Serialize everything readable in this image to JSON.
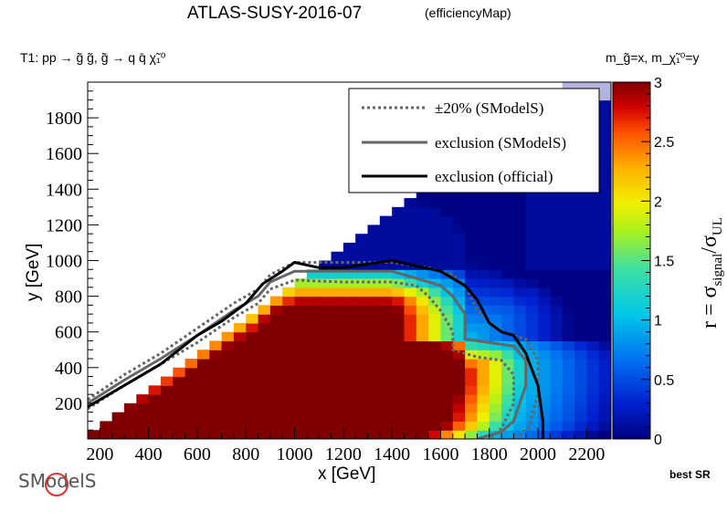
{
  "chart_data": {
    "type": "heatmap",
    "title": "ATLAS-SUSY-2016-07",
    "subtitle": "(efficiencyMap)",
    "process": "T1: pp → g̃ g̃, g̃ → q q̄ χ̃₁⁰",
    "mass_label": "m_g̃=x, m_χ̃₁⁰=y",
    "xlabel": "x [GeV]",
    "ylabel": "y [GeV]",
    "zlabel": "r = σ_signal/σ_UL",
    "xlim": [
      150,
      2300
    ],
    "ylim": [
      0,
      2000
    ],
    "zlim": [
      0,
      3
    ],
    "x_ticks": [
      200,
      400,
      600,
      800,
      1000,
      1200,
      1400,
      1600,
      1800,
      2000,
      2200
    ],
    "y_ticks": [
      200,
      400,
      600,
      800,
      1000,
      1200,
      1400,
      1600,
      1800
    ],
    "z_ticks": [
      0,
      0.5,
      1,
      1.5,
      2,
      2.5,
      3
    ],
    "legend_position": "top-right",
    "legend": [
      {
        "label": "±20% (SModelS)",
        "style": "dotted",
        "color": "#666666"
      },
      {
        "label": "exclusion (SModelS)",
        "style": "solid",
        "color": "#666666"
      },
      {
        "label": "exclusion (official)",
        "style": "solid",
        "color": "#000000"
      }
    ],
    "lightpurple_region_note": "",
    "exclusion_official": [
      [
        150,
        180
      ],
      [
        300,
        300
      ],
      [
        450,
        420
      ],
      [
        600,
        580
      ],
      [
        700,
        660
      ],
      [
        800,
        760
      ],
      [
        870,
        870
      ],
      [
        950,
        940
      ],
      [
        1000,
        990
      ],
      [
        1100,
        960
      ],
      [
        1200,
        960
      ],
      [
        1300,
        980
      ],
      [
        1400,
        1000
      ],
      [
        1500,
        970
      ],
      [
        1600,
        940
      ],
      [
        1700,
        860
      ],
      [
        1750,
        780
      ],
      [
        1800,
        650
      ],
      [
        1850,
        600
      ],
      [
        1900,
        580
      ],
      [
        1950,
        480
      ],
      [
        2000,
        300
      ],
      [
        2020,
        100
      ],
      [
        2020,
        0
      ]
    ],
    "exclusion_smodels": [
      [
        150,
        200
      ],
      [
        300,
        330
      ],
      [
        450,
        450
      ],
      [
        600,
        580
      ],
      [
        750,
        720
      ],
      [
        850,
        800
      ],
      [
        900,
        880
      ],
      [
        1000,
        940
      ],
      [
        1200,
        940
      ],
      [
        1400,
        940
      ],
      [
        1500,
        900
      ],
      [
        1600,
        860
      ],
      [
        1650,
        800
      ],
      [
        1700,
        700
      ],
      [
        1700,
        560
      ],
      [
        1800,
        540
      ],
      [
        1900,
        520
      ],
      [
        1950,
        440
      ],
      [
        1950,
        300
      ],
      [
        1900,
        100
      ],
      [
        1850,
        40
      ],
      [
        1750,
        0
      ]
    ],
    "excl_plus20": [
      [
        150,
        220
      ],
      [
        300,
        360
      ],
      [
        450,
        480
      ],
      [
        600,
        620
      ],
      [
        750,
        760
      ],
      [
        850,
        840
      ],
      [
        900,
        920
      ],
      [
        1000,
        990
      ],
      [
        1200,
        990
      ],
      [
        1400,
        990
      ],
      [
        1550,
        960
      ],
      [
        1650,
        920
      ],
      [
        1700,
        860
      ],
      [
        1750,
        720
      ],
      [
        1850,
        600
      ],
      [
        1950,
        560
      ],
      [
        2000,
        440
      ],
      [
        2000,
        250
      ],
      [
        1960,
        60
      ],
      [
        1900,
        0
      ]
    ],
    "excl_minus20": [
      [
        150,
        170
      ],
      [
        300,
        300
      ],
      [
        450,
        420
      ],
      [
        600,
        540
      ],
      [
        750,
        680
      ],
      [
        850,
        760
      ],
      [
        900,
        840
      ],
      [
        1000,
        890
      ],
      [
        1200,
        880
      ],
      [
        1400,
        880
      ],
      [
        1500,
        860
      ],
      [
        1550,
        800
      ],
      [
        1600,
        720
      ],
      [
        1650,
        600
      ],
      [
        1650,
        500
      ],
      [
        1750,
        460
      ],
      [
        1850,
        440
      ],
      [
        1900,
        360
      ],
      [
        1900,
        200
      ],
      [
        1850,
        60
      ],
      [
        1800,
        0
      ]
    ]
  },
  "footer": {
    "best_sr": "best SR",
    "logo": "SModelS"
  }
}
